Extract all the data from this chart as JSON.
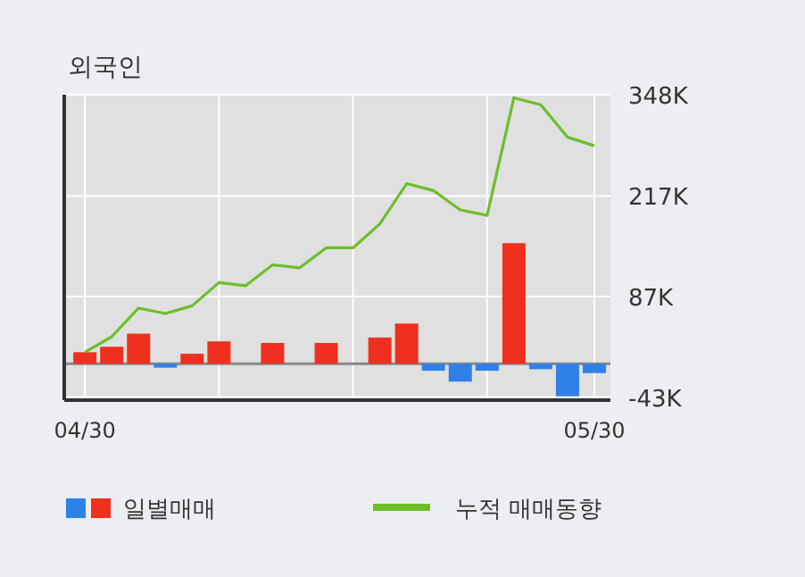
{
  "chart_data": {
    "type": "bar",
    "title": "외국인",
    "categories": [
      "04/30",
      null,
      null,
      null,
      null,
      null,
      null,
      null,
      null,
      null,
      null,
      null,
      null,
      null,
      null,
      null,
      null,
      null,
      null,
      "05/30"
    ],
    "series": [
      {
        "name": "일별매매",
        "values": [
          15,
          22,
          39,
          -5,
          13,
          29,
          0,
          27,
          0,
          27,
          0,
          34,
          52,
          -9,
          -23,
          -9,
          156,
          -7,
          -42,
          -12
        ],
        "colors": [
          "#f0301e",
          "#f0301e",
          "#f0301e",
          "#2f80e8",
          "#f0301e",
          "#f0301e",
          "#f0301e",
          "#f0301e",
          "#f0301e",
          "#f0301e",
          "#f0301e",
          "#f0301e",
          "#f0301e",
          "#2f80e8",
          "#2f80e8",
          "#2f80e8",
          "#f0301e",
          "#2f80e8",
          "#2f80e8",
          "#2f80e8"
        ]
      },
      {
        "name": "누적 매매동향",
        "type": "line",
        "color": "#6cbf2a",
        "values": [
          15,
          35,
          72,
          65,
          75,
          105,
          101,
          128,
          124,
          150,
          150,
          181,
          233,
          224,
          199,
          192,
          344,
          335,
          293,
          282
        ]
      }
    ],
    "ylim": [
      -47,
      348
    ],
    "yticks": [
      {
        "value": 348,
        "label": "348K"
      },
      {
        "value": 217,
        "label": "217K"
      },
      {
        "value": 87,
        "label": "87K"
      },
      {
        "value": -43,
        "label": "-43K"
      }
    ],
    "grid": true,
    "legend": "bottom"
  }
}
